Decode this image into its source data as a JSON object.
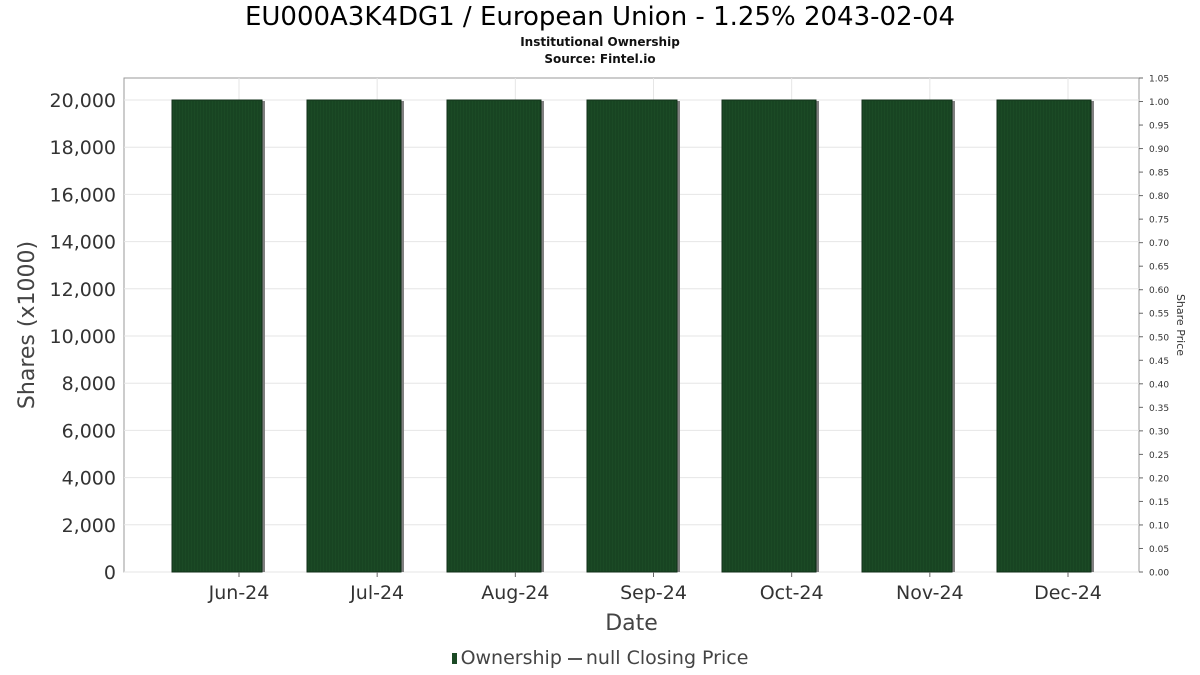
{
  "chart_data": {
    "type": "bar",
    "title": "EU000A3K4DG1 / European Union - 1.25% 2043-02-04",
    "subtitle_lines": [
      "Institutional Ownership",
      "Source: Fintel.io"
    ],
    "xlabel": "Date",
    "ylabel": "Shares (x1000)",
    "y2label": "Share Price",
    "categories": [
      "Jun-24",
      "Jul-24",
      "Aug-24",
      "Sep-24",
      "Oct-24",
      "Nov-24",
      "Dec-24"
    ],
    "series": [
      {
        "name": "Ownership",
        "values": [
          20000,
          20000,
          20000,
          20000,
          20000,
          20000,
          20000
        ]
      }
    ],
    "legend": [
      "Ownership",
      "null Closing Price"
    ],
    "legend_position": "bottom",
    "ylim": [
      0,
      20000
    ],
    "yticks": [
      0,
      2000,
      4000,
      6000,
      8000,
      10000,
      12000,
      14000,
      16000,
      18000,
      20000
    ],
    "ytick_labels": [
      "0",
      "2,000",
      "4,000",
      "6,000",
      "8,000",
      "10,000",
      "12,000",
      "14,000",
      "16,000",
      "18,000",
      "20,000"
    ],
    "y2lim": [
      0,
      1.05
    ],
    "y2tick_labels": [
      "0.00",
      "0.05",
      "0.10",
      "0.15",
      "0.20",
      "0.25",
      "0.30",
      "0.35",
      "0.40",
      "0.45",
      "0.50",
      "0.55",
      "0.60",
      "0.65",
      "0.70",
      "0.75",
      "0.80",
      "0.85",
      "0.90",
      "0.95",
      "1.00",
      "1.05"
    ],
    "grid": true,
    "colors": {
      "bar": "#1b4a25",
      "bar_shadow": "#808080",
      "grid": "#e6e6e6"
    }
  }
}
